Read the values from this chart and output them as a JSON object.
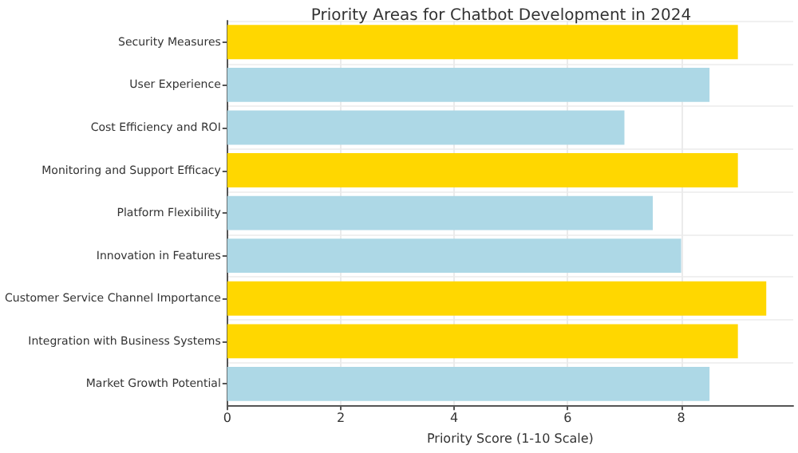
{
  "chart_data": {
    "type": "bar",
    "orientation": "horizontal",
    "title": "Priority Areas for Chatbot Development in 2024",
    "xlabel": "Priority Score (1-10 Scale)",
    "categories": [
      "Security Measures",
      "User Experience",
      "Cost Efficiency and ROI",
      "Monitoring and Support Efficacy",
      "Platform Flexibility",
      "Innovation in Features",
      "Customer Service Channel Importance",
      "Integration with Business Systems",
      "Market Growth Potential"
    ],
    "values": [
      9,
      8.5,
      7,
      9,
      7.5,
      8,
      9.5,
      9,
      8.5
    ],
    "colors": [
      "#ffd700",
      "#add8e6",
      "#add8e6",
      "#ffd700",
      "#add8e6",
      "#add8e6",
      "#ffd700",
      "#ffd700",
      "#add8e6"
    ],
    "xlim": [
      0,
      9.975
    ],
    "xticks": [
      0,
      2,
      4,
      6,
      8
    ],
    "grid": true
  }
}
